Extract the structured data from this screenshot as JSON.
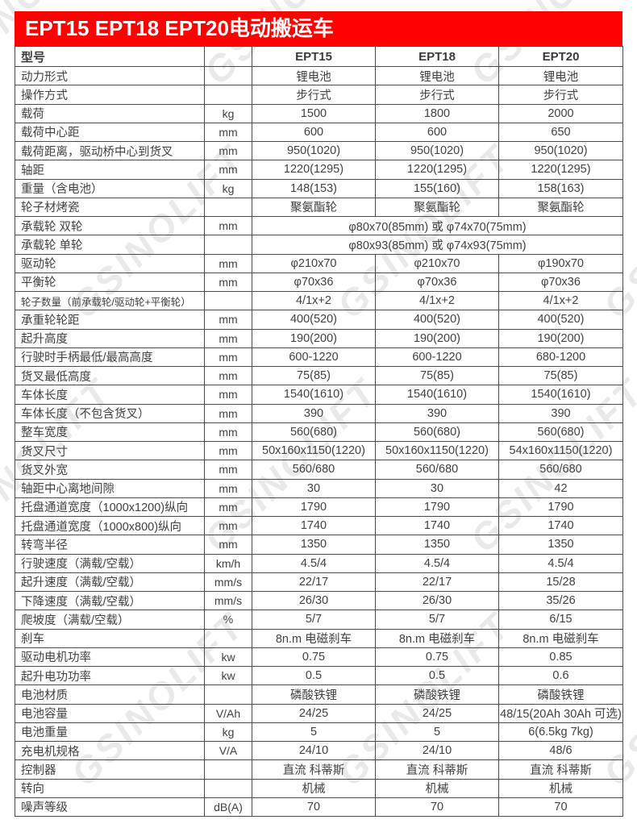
{
  "page": {
    "title": "EPT15 EPT18 EPT20电动搬运车"
  },
  "colors": {
    "banner": "#fe0202",
    "banner_text": "#ffffff",
    "border": "#4a4a4a",
    "text": "#414141",
    "watermark": "#e9e9e9"
  },
  "watermark": {
    "text": "GSINOLIFT"
  },
  "table": {
    "header": {
      "label": "型号",
      "unit": "",
      "models": [
        "EPT15",
        "EPT18",
        "EPT20"
      ]
    },
    "rows": [
      {
        "label": "动力形式",
        "unit": "",
        "values": [
          "锂电池",
          "锂电池",
          "锂电池"
        ]
      },
      {
        "label": "操作方式",
        "unit": "",
        "values": [
          "步行式",
          "步行式",
          "步行式"
        ]
      },
      {
        "label": "载荷",
        "unit": "kg",
        "values": [
          "1500",
          "1800",
          "2000"
        ]
      },
      {
        "label": "载荷中心距",
        "unit": "mm",
        "values": [
          "600",
          "600",
          "650"
        ]
      },
      {
        "label": "载荷距离，驱动桥中心到货叉",
        "unit": "mm",
        "values": [
          "950(1020)",
          "950(1020)",
          "950(1020)"
        ]
      },
      {
        "label": "轴距",
        "unit": "mm",
        "values": [
          "1220(1295)",
          "1220(1295)",
          "1220(1295)"
        ]
      },
      {
        "label": "重量（含电池）",
        "unit": "kg",
        "values": [
          "148(153)",
          "155(160)",
          "158(163)"
        ]
      },
      {
        "label": "轮子材烤瓷",
        "unit": "",
        "values": [
          "聚氨酯轮",
          "聚氨酯轮",
          "聚氨酯轮"
        ]
      },
      {
        "label": "承载轮 双轮",
        "unit": "mm",
        "span": "φ80x70(85mm) 或 φ74x70(75mm)"
      },
      {
        "label": "承载轮 单轮",
        "unit": "",
        "span": "φ80x93(85mm) 或 φ74x93(75mm)"
      },
      {
        "label": "驱动轮",
        "unit": "mm",
        "values": [
          "φ210x70",
          "φ210x70",
          "φ190x70"
        ]
      },
      {
        "label": "平衡轮",
        "unit": "mm",
        "values": [
          "φ70x36",
          "φ70x36",
          "φ70x36"
        ]
      },
      {
        "label": "轮子数量（前承载轮/驱动轮+平衡轮）",
        "unit": "",
        "values": [
          "4/1x+2",
          "4/1x+2",
          "4/1x+2"
        ]
      },
      {
        "label": "承重轮轮距",
        "unit": "mm",
        "values": [
          "400(520)",
          "400(520)",
          "400(520)"
        ]
      },
      {
        "label": "起升高度",
        "unit": "mm",
        "values": [
          "190(200)",
          "190(200)",
          "190(200)"
        ]
      },
      {
        "label": "行驶时手柄最低/最高高度",
        "unit": "mm",
        "values": [
          "600-1220",
          "600-1220",
          "680-1200"
        ]
      },
      {
        "label": "货叉最低高度",
        "unit": "mm",
        "values": [
          "75(85)",
          "75(85)",
          "75(85)"
        ]
      },
      {
        "label": "车体长度",
        "unit": "mm",
        "values": [
          "1540(1610)",
          "1540(1610)",
          "1540(1610)"
        ]
      },
      {
        "label": "车体长度（不包含货叉）",
        "unit": "mm",
        "values": [
          "390",
          "390",
          "390"
        ]
      },
      {
        "label": "整车宽度",
        "unit": "mm",
        "values": [
          "560(680)",
          "560(680)",
          "560(680)"
        ]
      },
      {
        "label": "货叉尺寸",
        "unit": "mm",
        "values": [
          "50x160x1150(1220)",
          "50x160x1150(1220)",
          "54x160x1150(1220)"
        ]
      },
      {
        "label": "货叉外宽",
        "unit": "mm",
        "values": [
          "560/680",
          "560/680",
          "560/680"
        ]
      },
      {
        "label": "轴距中心离地间隙",
        "unit": "mm",
        "values": [
          "30",
          "30",
          "42"
        ]
      },
      {
        "label": "托盘通道宽度（1000x1200)纵向",
        "unit": "mm",
        "values": [
          "1790",
          "1790",
          "1790"
        ]
      },
      {
        "label": "托盘通道宽度（1000x800)纵向",
        "unit": "mm",
        "values": [
          "1740",
          "1740",
          "1740"
        ]
      },
      {
        "label": "转弯半径",
        "unit": "mm",
        "values": [
          "1350",
          "1350",
          "1350"
        ]
      },
      {
        "label": "行驶速度（满载/空载）",
        "unit": "km/h",
        "values": [
          "4.5/4",
          "4.5/4",
          "4.5/4"
        ]
      },
      {
        "label": "起升速度（满载/空载）",
        "unit": "mm/s",
        "values": [
          "22/17",
          "22/17",
          "15/28"
        ]
      },
      {
        "label": "下降速度（满载/空载）",
        "unit": "mm/s",
        "values": [
          "26/30",
          "26/30",
          "35/26"
        ]
      },
      {
        "label": "爬坡度（满载/空载）",
        "unit": "%",
        "values": [
          "5/7",
          "5/7",
          "6/15"
        ]
      },
      {
        "label": "刹车",
        "unit": "",
        "values": [
          "8n.m 电磁刹车",
          "8n.m 电磁刹车",
          "8n.m 电磁刹车"
        ]
      },
      {
        "label": "驱动电机功率",
        "unit": "kw",
        "values": [
          "0.75",
          "0.75",
          "0.85"
        ]
      },
      {
        "label": "起升电功功率",
        "unit": "kw",
        "values": [
          "0.5",
          "0.5",
          "0.6"
        ]
      },
      {
        "label": "电池材质",
        "unit": "",
        "values": [
          "磷酸铁锂",
          "磷酸铁锂",
          "磷酸铁锂"
        ]
      },
      {
        "label": "电池容量",
        "unit": "V/Ah",
        "values": [
          "24/25",
          "24/25",
          "48/15(20Ah 30Ah 可选)"
        ]
      },
      {
        "label": "电池重量",
        "unit": "kg",
        "values": [
          "5",
          "5",
          "6(6.5kg 7kg)"
        ]
      },
      {
        "label": "充电机规格",
        "unit": "V/A",
        "values": [
          "24/10",
          "24/10",
          "48/6"
        ]
      },
      {
        "label": "控制器",
        "unit": "",
        "values": [
          "直流 科蒂斯",
          "直流 科蒂斯",
          "直流 科蒂斯"
        ]
      },
      {
        "label": "转向",
        "unit": "",
        "values": [
          "机械",
          "机械",
          "机械"
        ]
      },
      {
        "label": "噪声等级",
        "unit": "dB(A)",
        "values": [
          "70",
          "70",
          "70"
        ]
      }
    ]
  }
}
